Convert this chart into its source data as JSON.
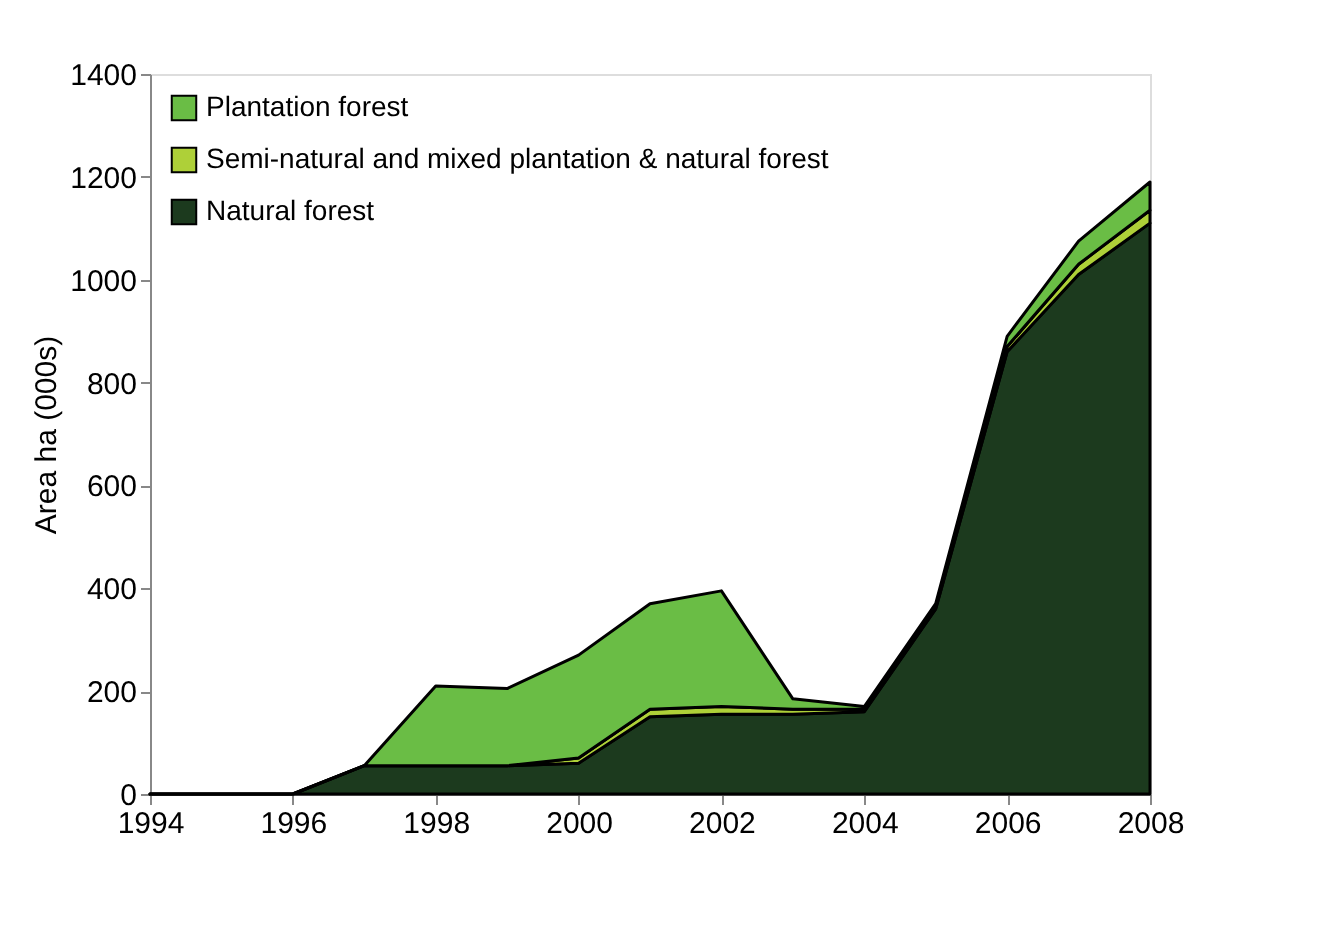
{
  "chart_data": {
    "type": "area",
    "stacked": true,
    "ylabel": "Area ha (000s)",
    "x": [
      1994,
      1995,
      1996,
      1997,
      1998,
      1999,
      2000,
      2001,
      2002,
      2003,
      2004,
      2005,
      2006,
      2007,
      2008
    ],
    "series": [
      {
        "name": "Natural forest",
        "color": "#1c3a1e",
        "values": [
          0,
          0,
          0,
          55,
          55,
          55,
          60,
          150,
          155,
          155,
          160,
          360,
          860,
          1010,
          1110
        ]
      },
      {
        "name": "Semi-natural and mixed plantation & natural forest",
        "color": "#aed038",
        "values": [
          0,
          0,
          0,
          0,
          0,
          0,
          10,
          15,
          15,
          10,
          5,
          5,
          10,
          20,
          25
        ]
      },
      {
        "name": "Plantation forest",
        "color": "#6abd45",
        "values": [
          0,
          0,
          0,
          0,
          155,
          150,
          200,
          205,
          225,
          20,
          5,
          5,
          20,
          45,
          55
        ]
      }
    ],
    "xlim": [
      1994,
      2008
    ],
    "xticks": [
      1994,
      1996,
      1998,
      2000,
      2002,
      2004,
      2006,
      2008
    ],
    "ylim": [
      0,
      1400
    ],
    "yticks": [
      0,
      200,
      400,
      600,
      800,
      1000,
      1200,
      1400
    ],
    "grid": false,
    "legend": "top left"
  }
}
